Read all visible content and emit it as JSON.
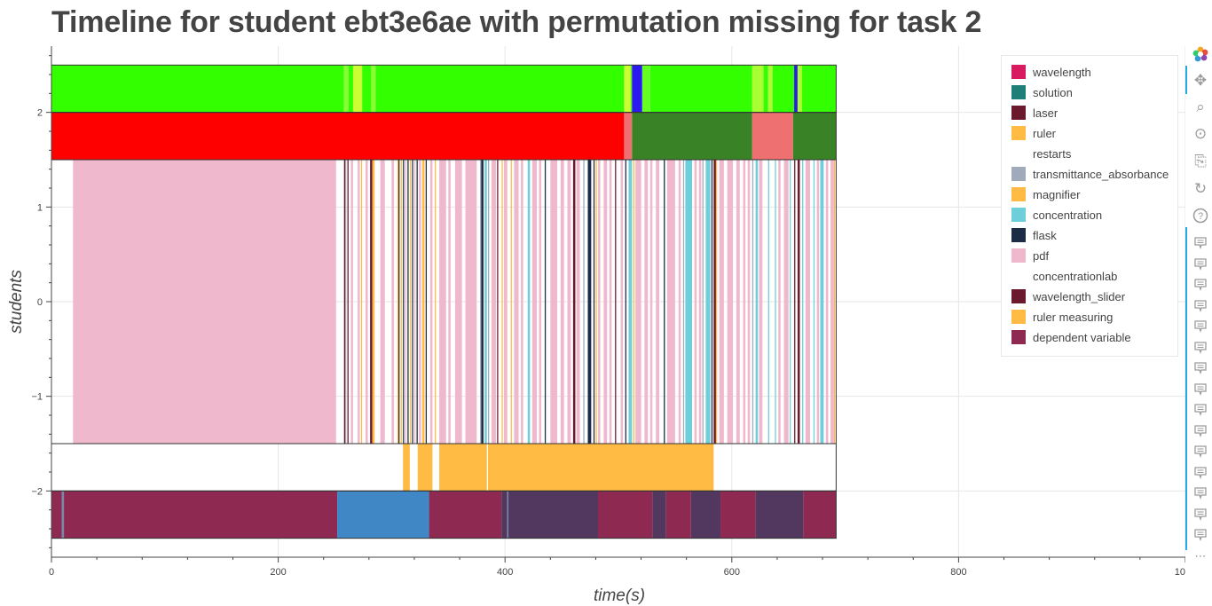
{
  "chart_data": {
    "type": "timeline",
    "title": "Timeline for student ebt3e6ae with permutation missing for task 2",
    "xlabel": "time(s)",
    "ylabel": "students",
    "xlim": [
      0,
      1000
    ],
    "ylim": [
      -2.7,
      2.7
    ],
    "x_ticks": [
      0,
      200,
      400,
      600,
      800,
      1000
    ],
    "x_tick_labels": [
      "0",
      "200",
      "400",
      "600",
      "800",
      "1000"
    ],
    "y_ticks": [
      -2,
      -1,
      0,
      1,
      2
    ],
    "y_tick_labels": [
      "−2",
      "−1",
      "0",
      "1",
      "2"
    ],
    "grid": true,
    "legend_position": "top-right",
    "legend": [
      {
        "label": "wavelength",
        "color": "#D81B60"
      },
      {
        "label": "solution",
        "color": "#1E7F78"
      },
      {
        "label": "laser",
        "color": "#6B1A2E"
      },
      {
        "label": "ruler",
        "color": "#FFBB44"
      },
      {
        "label": "restarts",
        "color": "#FFFFFF"
      },
      {
        "label": "transmittance_absorbance",
        "color": "#A0AABB"
      },
      {
        "label": "magnifier",
        "color": "#FFBB44"
      },
      {
        "label": "concentration",
        "color": "#6ECFDB"
      },
      {
        "label": "flask",
        "color": "#1C2C44"
      },
      {
        "label": "pdf",
        "color": "#F0B8CC"
      },
      {
        "label": "concentrationlab",
        "color": "#FFFFFF"
      },
      {
        "label": "wavelength_slider",
        "color": "#6B1A2E"
      },
      {
        "label": "ruler measuring",
        "color": "#FFBB44"
      },
      {
        "label": "dependent variable",
        "color": "#8E2A52"
      }
    ],
    "rows": [
      {
        "row": "top",
        "y_range": [
          2.0,
          2.5
        ],
        "segments": [
          {
            "start": 0,
            "end": 258,
            "color": "#33FF00"
          },
          {
            "start": 258,
            "end": 262,
            "color": "#88FF33"
          },
          {
            "start": 262,
            "end": 266,
            "color": "#33FF00"
          },
          {
            "start": 266,
            "end": 274,
            "color": "#CCFF33"
          },
          {
            "start": 274,
            "end": 282,
            "color": "#33FF00"
          },
          {
            "start": 282,
            "end": 286,
            "color": "#88FF33"
          },
          {
            "start": 286,
            "end": 505,
            "color": "#33FF00"
          },
          {
            "start": 505,
            "end": 511,
            "color": "#CCFF33"
          },
          {
            "start": 511,
            "end": 512,
            "color": "#33FF00"
          },
          {
            "start": 512,
            "end": 521,
            "color": "#2A1AF0"
          },
          {
            "start": 521,
            "end": 528,
            "color": "#66FF22"
          },
          {
            "start": 528,
            "end": 618,
            "color": "#33FF00"
          },
          {
            "start": 618,
            "end": 628,
            "color": "#AAFF33"
          },
          {
            "start": 628,
            "end": 632,
            "color": "#33FF00"
          },
          {
            "start": 632,
            "end": 636,
            "color": "#AAFF33"
          },
          {
            "start": 636,
            "end": 655,
            "color": "#33FF00"
          },
          {
            "start": 655,
            "end": 658,
            "color": "#2A1AF0"
          },
          {
            "start": 658,
            "end": 662,
            "color": "#AAFF33"
          },
          {
            "start": 662,
            "end": 692,
            "color": "#33FF00"
          }
        ]
      },
      {
        "row": "2",
        "y_range": [
          1.5,
          2.0
        ],
        "segments": [
          {
            "start": 0,
            "end": 505,
            "color": "#FF0000"
          },
          {
            "start": 505,
            "end": 512,
            "color": "#EE7070"
          },
          {
            "start": 512,
            "end": 618,
            "color": "#3A8226"
          },
          {
            "start": 618,
            "end": 654,
            "color": "#EE7070"
          },
          {
            "start": 654,
            "end": 692,
            "color": "#3A8226"
          }
        ]
      },
      {
        "row": "main",
        "y_range": [
          -1.5,
          1.5
        ],
        "segments": [
          {
            "start": 19,
            "end": 251,
            "color": "#F0B8CC"
          },
          {
            "start": 258,
            "end": 259,
            "color": "#6B1A2E"
          },
          {
            "start": 259,
            "end": 260,
            "color": "#A0AABB"
          },
          {
            "start": 261,
            "end": 262,
            "color": "#6B1A2E"
          },
          {
            "start": 264,
            "end": 266,
            "color": "#F0B8CC"
          },
          {
            "start": 270,
            "end": 272,
            "color": "#F0B8CC"
          },
          {
            "start": 273,
            "end": 274,
            "color": "#FFBB44"
          },
          {
            "start": 277,
            "end": 279,
            "color": "#F0B8CC"
          },
          {
            "start": 281,
            "end": 283,
            "color": "#6B1A2E"
          },
          {
            "start": 283,
            "end": 285,
            "color": "#FFBB44"
          },
          {
            "start": 290,
            "end": 294,
            "color": "#F0B8CC"
          },
          {
            "start": 300,
            "end": 302,
            "color": "#F0B8CC"
          },
          {
            "start": 305,
            "end": 306,
            "color": "#FFBB44"
          },
          {
            "start": 306,
            "end": 307,
            "color": "#1C2C44"
          },
          {
            "start": 308,
            "end": 309,
            "color": "#FFBB44"
          },
          {
            "start": 310,
            "end": 311,
            "color": "#1C2C44"
          },
          {
            "start": 312,
            "end": 313,
            "color": "#F0B8CC"
          },
          {
            "start": 314,
            "end": 315,
            "color": "#1C2C44"
          },
          {
            "start": 316,
            "end": 317,
            "color": "#FFBB44"
          },
          {
            "start": 318,
            "end": 319,
            "color": "#1C2C44"
          },
          {
            "start": 320,
            "end": 321,
            "color": "#F0B8CC"
          },
          {
            "start": 322,
            "end": 323,
            "color": "#1C2C44"
          },
          {
            "start": 324,
            "end": 326,
            "color": "#F0B8CC"
          },
          {
            "start": 327,
            "end": 329,
            "color": "#FFBB44"
          },
          {
            "start": 330,
            "end": 331,
            "color": "#1C2C44"
          },
          {
            "start": 334,
            "end": 336,
            "color": "#F0B8CC"
          },
          {
            "start": 338,
            "end": 339,
            "color": "#FFBB44"
          },
          {
            "start": 342,
            "end": 348,
            "color": "#F0B8CC"
          },
          {
            "start": 350,
            "end": 352,
            "color": "#F0B8CC"
          },
          {
            "start": 356,
            "end": 362,
            "color": "#F0B8CC"
          },
          {
            "start": 365,
            "end": 375,
            "color": "#F0B8CC"
          },
          {
            "start": 378,
            "end": 379,
            "color": "#A0AABB"
          },
          {
            "start": 379,
            "end": 381,
            "color": "#1C2C44"
          },
          {
            "start": 382,
            "end": 384,
            "color": "#6ECFDB"
          },
          {
            "start": 385,
            "end": 386,
            "color": "#A0AABB"
          },
          {
            "start": 388,
            "end": 392,
            "color": "#F0B8CC"
          },
          {
            "start": 393,
            "end": 394,
            "color": "#6B1A2E"
          },
          {
            "start": 397,
            "end": 398,
            "color": "#FFBB44"
          },
          {
            "start": 399,
            "end": 402,
            "color": "#F0B8CC"
          },
          {
            "start": 405,
            "end": 406,
            "color": "#FFBB44"
          },
          {
            "start": 408,
            "end": 412,
            "color": "#F0B8CC"
          },
          {
            "start": 414,
            "end": 416,
            "color": "#F0B8CC"
          },
          {
            "start": 420,
            "end": 422,
            "color": "#6ECFDB"
          },
          {
            "start": 424,
            "end": 428,
            "color": "#F0B8CC"
          },
          {
            "start": 430,
            "end": 432,
            "color": "#F0B8CC"
          },
          {
            "start": 435,
            "end": 436,
            "color": "#1C2C44"
          },
          {
            "start": 440,
            "end": 446,
            "color": "#F0B8CC"
          },
          {
            "start": 449,
            "end": 452,
            "color": "#F0B8CC"
          },
          {
            "start": 455,
            "end": 458,
            "color": "#F0B8CC"
          },
          {
            "start": 460,
            "end": 462,
            "color": "#6B1A2E"
          },
          {
            "start": 463,
            "end": 466,
            "color": "#F0B8CC"
          },
          {
            "start": 469,
            "end": 470,
            "color": "#A0AABB"
          },
          {
            "start": 473,
            "end": 476,
            "color": "#1C2C44"
          },
          {
            "start": 478,
            "end": 479,
            "color": "#1C2C44"
          },
          {
            "start": 480,
            "end": 481,
            "color": "#FFBB44"
          },
          {
            "start": 482,
            "end": 484,
            "color": "#F0B8CC"
          },
          {
            "start": 487,
            "end": 490,
            "color": "#F0B8CC"
          },
          {
            "start": 492,
            "end": 494,
            "color": "#F0B8CC"
          },
          {
            "start": 497,
            "end": 498,
            "color": "#6B1A2E"
          },
          {
            "start": 502,
            "end": 504,
            "color": "#F0B8CC"
          },
          {
            "start": 506,
            "end": 507,
            "color": "#1C2C44"
          },
          {
            "start": 509,
            "end": 512,
            "color": "#6ECFDB"
          },
          {
            "start": 513,
            "end": 514,
            "color": "#FFBB44"
          },
          {
            "start": 515,
            "end": 520,
            "color": "#F0B8CC"
          },
          {
            "start": 523,
            "end": 526,
            "color": "#F0B8CC"
          },
          {
            "start": 528,
            "end": 530,
            "color": "#F0B8CC"
          },
          {
            "start": 533,
            "end": 536,
            "color": "#F0B8CC"
          },
          {
            "start": 540,
            "end": 541,
            "color": "#1C2C44"
          },
          {
            "start": 543,
            "end": 550,
            "color": "#F0B8CC"
          },
          {
            "start": 553,
            "end": 555,
            "color": "#F0B8CC"
          },
          {
            "start": 557,
            "end": 558,
            "color": "#A0AABB"
          },
          {
            "start": 559,
            "end": 565,
            "color": "#6ECFDB"
          },
          {
            "start": 567,
            "end": 569,
            "color": "#F0B8CC"
          },
          {
            "start": 571,
            "end": 573,
            "color": "#F0B8CC"
          },
          {
            "start": 574,
            "end": 575,
            "color": "#A0AABB"
          },
          {
            "start": 577,
            "end": 581,
            "color": "#6ECFDB"
          },
          {
            "start": 582,
            "end": 583,
            "color": "#1C2C44"
          },
          {
            "start": 584,
            "end": 586,
            "color": "#6B1A2E"
          },
          {
            "start": 586,
            "end": 587,
            "color": "#FFBB44"
          },
          {
            "start": 589,
            "end": 593,
            "color": "#F0B8CC"
          },
          {
            "start": 596,
            "end": 601,
            "color": "#F0B8CC"
          },
          {
            "start": 604,
            "end": 607,
            "color": "#F0B8CC"
          },
          {
            "start": 610,
            "end": 612,
            "color": "#F0B8CC"
          },
          {
            "start": 614,
            "end": 616,
            "color": "#F0B8CC"
          },
          {
            "start": 618,
            "end": 619,
            "color": "#A0AABB"
          },
          {
            "start": 621,
            "end": 623,
            "color": "#6ECFDB"
          },
          {
            "start": 624,
            "end": 627,
            "color": "#F0B8CC"
          },
          {
            "start": 632,
            "end": 633,
            "color": "#6ECFDB"
          },
          {
            "start": 638,
            "end": 639,
            "color": "#6ECFDB"
          },
          {
            "start": 641,
            "end": 643,
            "color": "#F0B8CC"
          },
          {
            "start": 646,
            "end": 650,
            "color": "#F0B8CC"
          },
          {
            "start": 651,
            "end": 652,
            "color": "#6ECFDB"
          },
          {
            "start": 655,
            "end": 656,
            "color": "#6B1A2E"
          },
          {
            "start": 658,
            "end": 660,
            "color": "#6B1A2E"
          },
          {
            "start": 662,
            "end": 663,
            "color": "#6ECFDB"
          },
          {
            "start": 665,
            "end": 669,
            "color": "#F0B8CC"
          },
          {
            "start": 672,
            "end": 673,
            "color": "#6ECFDB"
          },
          {
            "start": 675,
            "end": 677,
            "color": "#F0B8CC"
          },
          {
            "start": 678,
            "end": 681,
            "color": "#6ECFDB"
          },
          {
            "start": 683,
            "end": 685,
            "color": "#F0B8CC"
          },
          {
            "start": 687,
            "end": 690,
            "color": "#F0B8CC"
          },
          {
            "start": 690,
            "end": 691,
            "color": "#FFBB44"
          }
        ]
      },
      {
        "row": "ruler-measuring",
        "y_range": [
          -2.0,
          -1.5
        ],
        "segments": [
          {
            "start": 310,
            "end": 316,
            "color": "#FFBB44"
          },
          {
            "start": 323,
            "end": 336,
            "color": "#FFBB44"
          },
          {
            "start": 342,
            "end": 384,
            "color": "#FFBB44"
          },
          {
            "start": 385,
            "end": 584,
            "color": "#FFBB44"
          }
        ]
      },
      {
        "row": "-2",
        "y_range": [
          -2.5,
          -2.0
        ],
        "segments": [
          {
            "start": 0,
            "end": 9,
            "color": "#8E2A52"
          },
          {
            "start": 9,
            "end": 11,
            "color": "#7A86AA"
          },
          {
            "start": 11,
            "end": 252,
            "color": "#8E2A52"
          },
          {
            "start": 252,
            "end": 333,
            "color": "#3F88C5"
          },
          {
            "start": 333,
            "end": 397,
            "color": "#8E2A52"
          },
          {
            "start": 397,
            "end": 402,
            "color": "#52385E"
          },
          {
            "start": 402,
            "end": 403,
            "color": "#7A86AA"
          },
          {
            "start": 403,
            "end": 482,
            "color": "#52385E"
          },
          {
            "start": 482,
            "end": 530,
            "color": "#8E2A52"
          },
          {
            "start": 530,
            "end": 542,
            "color": "#52385E"
          },
          {
            "start": 542,
            "end": 564,
            "color": "#8E2A52"
          },
          {
            "start": 564,
            "end": 590,
            "color": "#52385E"
          },
          {
            "start": 590,
            "end": 621,
            "color": "#8E2A52"
          },
          {
            "start": 621,
            "end": 663,
            "color": "#52385E"
          },
          {
            "start": 663,
            "end": 692,
            "color": "#8E2A52"
          }
        ]
      }
    ]
  },
  "toolbar": {
    "logo_icon": "bokeh-logo-icon",
    "pan_icon": "✥",
    "zoom_icon": "⌕",
    "wheel_icon": "⊙",
    "save_icon": "⎘",
    "reset_icon": "↻",
    "help_icon": "?",
    "hover_icon": "🗨",
    "more_icon": "⋯"
  }
}
